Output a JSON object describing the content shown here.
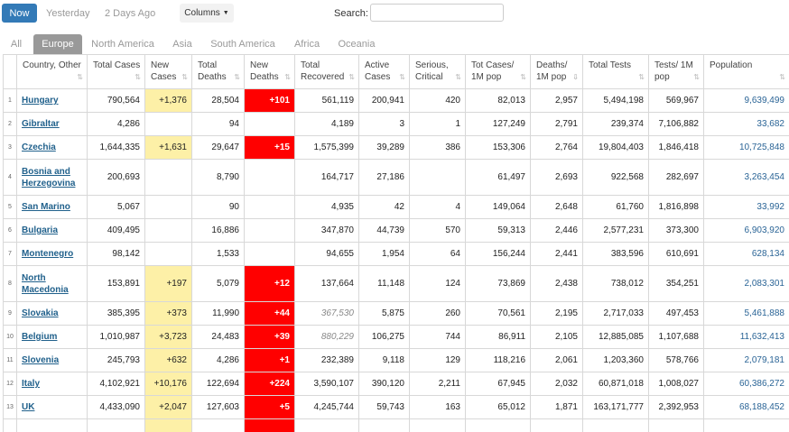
{
  "toolbar": {
    "now_label": "Now",
    "yesterday_label": "Yesterday",
    "two_days_label": "2 Days Ago",
    "columns_label": "Columns",
    "search_label": "Search:",
    "search_value": ""
  },
  "tabs": [
    {
      "label": "All",
      "active": false
    },
    {
      "label": "Europe",
      "active": true
    },
    {
      "label": "North America",
      "active": false
    },
    {
      "label": "Asia",
      "active": false
    },
    {
      "label": "South America",
      "active": false
    },
    {
      "label": "Africa",
      "active": false
    },
    {
      "label": "Oceania",
      "active": false
    }
  ],
  "columns": [
    {
      "key": "idx",
      "label": ""
    },
    {
      "key": "country",
      "label": "Country, Other"
    },
    {
      "key": "total_cases",
      "label": "Total Cases"
    },
    {
      "key": "new_cases",
      "label": "New Cases"
    },
    {
      "key": "total_deaths",
      "label": "Total Deaths"
    },
    {
      "key": "new_deaths",
      "label": "New Deaths"
    },
    {
      "key": "total_recovered",
      "label": "Total Recovered"
    },
    {
      "key": "active_cases",
      "label": "Active Cases"
    },
    {
      "key": "serious",
      "label": "Serious, Critical"
    },
    {
      "key": "cases_per_m",
      "label": "Tot Cases/ 1M pop"
    },
    {
      "key": "deaths_per_m",
      "label": "Deaths/ 1M pop"
    },
    {
      "key": "total_tests",
      "label": "Total Tests"
    },
    {
      "key": "tests_per_m",
      "label": "Tests/ 1M pop"
    },
    {
      "key": "population",
      "label": "Population"
    }
  ],
  "rows": [
    {
      "idx": "1",
      "country": "Hungary",
      "total_cases": "790,564",
      "new_cases": "+1,376",
      "total_deaths": "28,504",
      "new_deaths": "+101",
      "total_recovered": "561,119",
      "recovered_italic": false,
      "active_cases": "200,941",
      "serious": "420",
      "cases_per_m": "82,013",
      "deaths_per_m": "2,957",
      "total_tests": "5,494,198",
      "tests_per_m": "569,967",
      "population": "9,639,499"
    },
    {
      "idx": "2",
      "country": "Gibraltar",
      "total_cases": "4,286",
      "new_cases": "",
      "total_deaths": "94",
      "new_deaths": "",
      "total_recovered": "4,189",
      "recovered_italic": false,
      "active_cases": "3",
      "serious": "1",
      "cases_per_m": "127,249",
      "deaths_per_m": "2,791",
      "total_tests": "239,374",
      "tests_per_m": "7,106,882",
      "population": "33,682"
    },
    {
      "idx": "3",
      "country": "Czechia",
      "total_cases": "1,644,335",
      "new_cases": "+1,631",
      "total_deaths": "29,647",
      "new_deaths": "+15",
      "total_recovered": "1,575,399",
      "recovered_italic": false,
      "active_cases": "39,289",
      "serious": "386",
      "cases_per_m": "153,306",
      "deaths_per_m": "2,764",
      "total_tests": "19,804,403",
      "tests_per_m": "1,846,418",
      "population": "10,725,848"
    },
    {
      "idx": "4",
      "country": "Bosnia and Herzegovina",
      "total_cases": "200,693",
      "new_cases": "",
      "total_deaths": "8,790",
      "new_deaths": "",
      "total_recovered": "164,717",
      "recovered_italic": false,
      "active_cases": "27,186",
      "serious": "",
      "cases_per_m": "61,497",
      "deaths_per_m": "2,693",
      "total_tests": "922,568",
      "tests_per_m": "282,697",
      "population": "3,263,454"
    },
    {
      "idx": "5",
      "country": "San Marino",
      "total_cases": "5,067",
      "new_cases": "",
      "total_deaths": "90",
      "new_deaths": "",
      "total_recovered": "4,935",
      "recovered_italic": false,
      "active_cases": "42",
      "serious": "4",
      "cases_per_m": "149,064",
      "deaths_per_m": "2,648",
      "total_tests": "61,760",
      "tests_per_m": "1,816,898",
      "population": "33,992"
    },
    {
      "idx": "6",
      "country": "Bulgaria",
      "total_cases": "409,495",
      "new_cases": "",
      "total_deaths": "16,886",
      "new_deaths": "",
      "total_recovered": "347,870",
      "recovered_italic": false,
      "active_cases": "44,739",
      "serious": "570",
      "cases_per_m": "59,313",
      "deaths_per_m": "2,446",
      "total_tests": "2,577,231",
      "tests_per_m": "373,300",
      "population": "6,903,920"
    },
    {
      "idx": "7",
      "country": "Montenegro",
      "total_cases": "98,142",
      "new_cases": "",
      "total_deaths": "1,533",
      "new_deaths": "",
      "total_recovered": "94,655",
      "recovered_italic": false,
      "active_cases": "1,954",
      "serious": "64",
      "cases_per_m": "156,244",
      "deaths_per_m": "2,441",
      "total_tests": "383,596",
      "tests_per_m": "610,691",
      "population": "628,134"
    },
    {
      "idx": "8",
      "country": "North Macedonia",
      "total_cases": "153,891",
      "new_cases": "+197",
      "total_deaths": "5,079",
      "new_deaths": "+12",
      "total_recovered": "137,664",
      "recovered_italic": false,
      "active_cases": "11,148",
      "serious": "124",
      "cases_per_m": "73,869",
      "deaths_per_m": "2,438",
      "total_tests": "738,012",
      "tests_per_m": "354,251",
      "population": "2,083,301"
    },
    {
      "idx": "9",
      "country": "Slovakia",
      "total_cases": "385,395",
      "new_cases": "+373",
      "total_deaths": "11,990",
      "new_deaths": "+44",
      "total_recovered": "367,530",
      "recovered_italic": true,
      "active_cases": "5,875",
      "serious": "260",
      "cases_per_m": "70,561",
      "deaths_per_m": "2,195",
      "total_tests": "2,717,033",
      "tests_per_m": "497,453",
      "population": "5,461,888"
    },
    {
      "idx": "10",
      "country": "Belgium",
      "total_cases": "1,010,987",
      "new_cases": "+3,723",
      "total_deaths": "24,483",
      "new_deaths": "+39",
      "total_recovered": "880,229",
      "recovered_italic": true,
      "active_cases": "106,275",
      "serious": "744",
      "cases_per_m": "86,911",
      "deaths_per_m": "2,105",
      "total_tests": "12,885,085",
      "tests_per_m": "1,107,688",
      "population": "11,632,413"
    },
    {
      "idx": "11",
      "country": "Slovenia",
      "total_cases": "245,793",
      "new_cases": "+632",
      "total_deaths": "4,286",
      "new_deaths": "+1",
      "total_recovered": "232,389",
      "recovered_italic": false,
      "active_cases": "9,118",
      "serious": "129",
      "cases_per_m": "118,216",
      "deaths_per_m": "2,061",
      "total_tests": "1,203,360",
      "tests_per_m": "578,766",
      "population": "2,079,181"
    },
    {
      "idx": "12",
      "country": "Italy",
      "total_cases": "4,102,921",
      "new_cases": "+10,176",
      "total_deaths": "122,694",
      "new_deaths": "+224",
      "total_recovered": "3,590,107",
      "recovered_italic": false,
      "active_cases": "390,120",
      "serious": "2,211",
      "cases_per_m": "67,945",
      "deaths_per_m": "2,032",
      "total_tests": "60,871,018",
      "tests_per_m": "1,008,027",
      "population": "60,386,272"
    },
    {
      "idx": "13",
      "country": "UK",
      "total_cases": "4,433,090",
      "new_cases": "+2,047",
      "total_deaths": "127,603",
      "new_deaths": "+5",
      "total_recovered": "4,245,744",
      "recovered_italic": false,
      "active_cases": "59,743",
      "serious": "163",
      "cases_per_m": "65,012",
      "deaths_per_m": "1,871",
      "total_tests": "163,171,777",
      "tests_per_m": "2,392,953",
      "population": "68,188,452"
    },
    {
      "idx": "",
      "country": "",
      "total_cases": "",
      "new_cases": "",
      "total_deaths": "",
      "new_deaths": "",
      "total_recovered": "",
      "recovered_italic": false,
      "active_cases": "",
      "serious": "",
      "cases_per_m": "",
      "deaths_per_m": "",
      "total_tests": "",
      "tests_per_m": "",
      "population": ""
    }
  ],
  "sorted_column": "deaths_per_m",
  "colors": {
    "primary": "#337ab7",
    "new_cases_bg": "#fdf0a7",
    "new_deaths_bg": "#ff0000",
    "active_tab_bg": "#999999",
    "link": "#21618c"
  },
  "icons": {
    "sort": "sort-arrows-icon",
    "sort_active": "sort-desc-icon",
    "caret": "caret-down-icon"
  }
}
